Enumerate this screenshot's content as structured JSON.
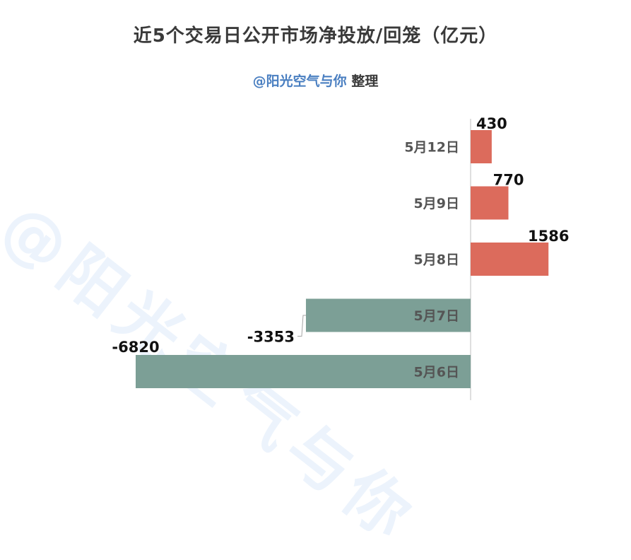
{
  "chart_data": {
    "type": "bar",
    "orientation": "horizontal",
    "title": "近5个交易日公开市场净投放/回笼（亿元）",
    "subtitle_handle": "@阳光空气与你",
    "subtitle_suffix": "整理",
    "watermark": "@阳光空气与你",
    "categories": [
      "5月12日",
      "5月9日",
      "5月8日",
      "5月7日",
      "5月6日"
    ],
    "values": [
      430,
      770,
      1586,
      -3353,
      -6820
    ],
    "value_labels": [
      "430",
      "770",
      "1586",
      "-3353",
      "-6820"
    ],
    "positive_color": "#dc6b5c",
    "negative_color": "#7c9f96",
    "xlim": [
      -6820,
      1586
    ],
    "grid": false,
    "legend": "none"
  }
}
